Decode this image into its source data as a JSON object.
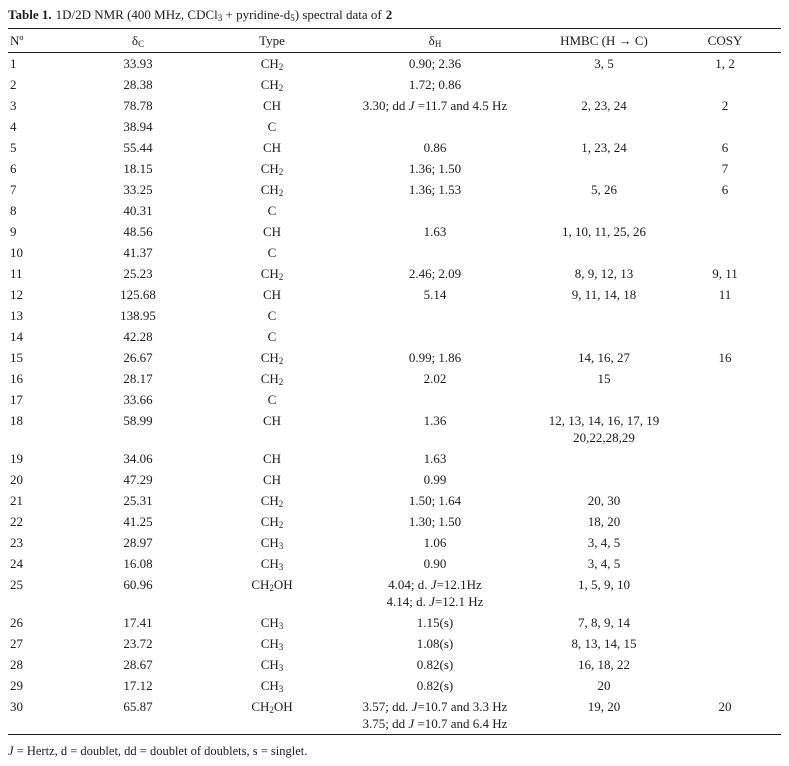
{
  "colors": {
    "background": "#ffffff",
    "text": "#1c1c1c",
    "rule": "#1a1a1a"
  },
  "caption": {
    "label": "Table 1.",
    "text": "1D/2D NMR (400 MHz, CDCl3 + pyridine-d5) spectral data of",
    "compound": "2"
  },
  "table": {
    "columns": [
      {
        "key": "n",
        "label": "Nº",
        "sub": ""
      },
      {
        "key": "dc",
        "label": "δ",
        "sub": "C"
      },
      {
        "key": "type",
        "label": "Type",
        "sub": ""
      },
      {
        "key": "dh",
        "label": "δ",
        "sub": "H"
      },
      {
        "key": "hmbc",
        "label": "HMBC (H → C)",
        "sub": ""
      },
      {
        "key": "cosy",
        "label": "COSY",
        "sub": ""
      }
    ],
    "rows": [
      {
        "n": "1",
        "dc": "33.93",
        "type": "CH2",
        "dh": [
          "0.90; 2.36"
        ],
        "hmbc": [
          "3, 5"
        ],
        "cosy": "1, 2"
      },
      {
        "n": "2",
        "dc": "28.38",
        "type": "CH2",
        "dh": [
          "1.72; 0.86"
        ],
        "hmbc": [],
        "cosy": ""
      },
      {
        "n": "3",
        "dc": "78.78",
        "type": "CH",
        "dh": [
          "3.30; dd J =11.7 and 4.5 Hz"
        ],
        "hmbc": [
          "2, 23, 24"
        ],
        "cosy": "2"
      },
      {
        "n": "4",
        "dc": "38.94",
        "type": "C",
        "dh": [],
        "hmbc": [],
        "cosy": ""
      },
      {
        "n": "5",
        "dc": "55.44",
        "type": "CH",
        "dh": [
          "0.86"
        ],
        "hmbc": [
          "1, 23, 24"
        ],
        "cosy": "6"
      },
      {
        "n": "6",
        "dc": "18.15",
        "type": "CH2",
        "dh": [
          "1.36; 1.50"
        ],
        "hmbc": [],
        "cosy": "7"
      },
      {
        "n": "7",
        "dc": "33.25",
        "type": "CH2",
        "dh": [
          "1.36; 1.53"
        ],
        "hmbc": [
          "5, 26"
        ],
        "cosy": "6"
      },
      {
        "n": "8",
        "dc": "40.31",
        "type": "C",
        "dh": [],
        "hmbc": [],
        "cosy": ""
      },
      {
        "n": "9",
        "dc": "48.56",
        "type": "CH",
        "dh": [
          "1.63"
        ],
        "hmbc": [
          "1, 10, 11, 25, 26"
        ],
        "cosy": ""
      },
      {
        "n": "10",
        "dc": "41.37",
        "type": "C",
        "dh": [],
        "hmbc": [],
        "cosy": ""
      },
      {
        "n": "11",
        "dc": "25.23",
        "type": "CH2",
        "dh": [
          "2.46; 2.09"
        ],
        "hmbc": [
          "8, 9, 12, 13"
        ],
        "cosy": "9, 11"
      },
      {
        "n": "12",
        "dc": "125.68",
        "type": "CH",
        "dh": [
          "5.14"
        ],
        "hmbc": [
          "9, 11, 14, 18"
        ],
        "cosy": "11"
      },
      {
        "n": "13",
        "dc": "138.95",
        "type": "C",
        "dh": [],
        "hmbc": [],
        "cosy": ""
      },
      {
        "n": "14",
        "dc": "42.28",
        "type": "C",
        "dh": [],
        "hmbc": [],
        "cosy": ""
      },
      {
        "n": "15",
        "dc": "26.67",
        "type": "CH2",
        "dh": [
          "0.99; 1.86"
        ],
        "hmbc": [
          "14, 16, 27"
        ],
        "cosy": "16"
      },
      {
        "n": "16",
        "dc": "28.17",
        "type": "CH2",
        "dh": [
          "2.02"
        ],
        "hmbc": [
          "15"
        ],
        "cosy": ""
      },
      {
        "n": "17",
        "dc": "33.66",
        "type": "C",
        "dh": [],
        "hmbc": [],
        "cosy": ""
      },
      {
        "n": "18",
        "dc": "58.99",
        "type": "CH",
        "dh": [
          "1.36"
        ],
        "hmbc": [
          "12, 13, 14, 16, 17, 19",
          "20,22,28,29"
        ],
        "cosy": ""
      },
      {
        "n": "19",
        "dc": "34.06",
        "type": "CH",
        "dh": [
          "1.63"
        ],
        "hmbc": [],
        "cosy": ""
      },
      {
        "n": "20",
        "dc": "47.29",
        "type": "CH",
        "dh": [
          "0.99"
        ],
        "hmbc": [],
        "cosy": ""
      },
      {
        "n": "21",
        "dc": "25.31",
        "type": "CH2",
        "dh": [
          "1.50; 1.64"
        ],
        "hmbc": [
          "20, 30"
        ],
        "cosy": ""
      },
      {
        "n": "22",
        "dc": "41.25",
        "type": "CH2",
        "dh": [
          "1.30; 1.50"
        ],
        "hmbc": [
          "18, 20"
        ],
        "cosy": ""
      },
      {
        "n": "23",
        "dc": "28.97",
        "type": "CH3",
        "dh": [
          "1.06"
        ],
        "hmbc": [
          "3, 4, 5"
        ],
        "cosy": ""
      },
      {
        "n": "24",
        "dc": "16.08",
        "type": "CH3",
        "dh": [
          "0.90"
        ],
        "hmbc": [
          "3, 4, 5"
        ],
        "cosy": ""
      },
      {
        "n": "25",
        "dc": "60.96",
        "type": "CH2OH",
        "dh": [
          "4.04; d. J=12.1Hz",
          "4.14; d. J=12.1 Hz"
        ],
        "hmbc": [
          "1, 5, 9, 10"
        ],
        "cosy": ""
      },
      {
        "n": "26",
        "dc": "17.41",
        "type": "CH3",
        "dh": [
          "1.15(s)"
        ],
        "hmbc": [
          "7, 8, 9, 14"
        ],
        "cosy": ""
      },
      {
        "n": "27",
        "dc": "23.72",
        "type": "CH3",
        "dh": [
          "1.08(s)"
        ],
        "hmbc": [
          "8, 13, 14, 15"
        ],
        "cosy": ""
      },
      {
        "n": "28",
        "dc": "28.67",
        "type": "CH3",
        "dh": [
          "0.82(s)"
        ],
        "hmbc": [
          "16, 18, 22"
        ],
        "cosy": ""
      },
      {
        "n": "29",
        "dc": "17.12",
        "type": "CH3",
        "dh": [
          "0.82(s)"
        ],
        "hmbc": [
          "20"
        ],
        "cosy": ""
      },
      {
        "n": "30",
        "dc": "65.87",
        "type": "CH2OH",
        "dh": [
          "3.57; dd. J=10.7 and 3.3 Hz",
          "3.75; dd J =10.7 and 6.4 Hz"
        ],
        "hmbc": [
          "19, 20"
        ],
        "cosy": "20"
      }
    ]
  },
  "footnote": "J = Hertz, d = doublet, dd = doublet of doublets, s = singlet."
}
